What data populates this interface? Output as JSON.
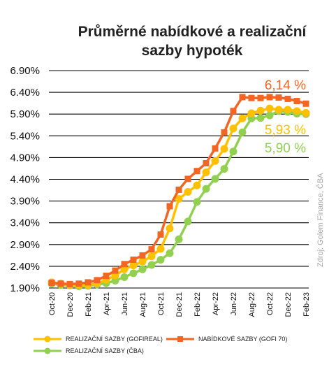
{
  "chart_data": {
    "type": "line",
    "title_lines": [
      "Průměrné nabídkové a realizační",
      "sazby hypoték"
    ],
    "y_ticks": [
      "6.90%",
      "6.40%",
      "5.90%",
      "5.40%",
      "4.90%",
      "4.40%",
      "3.90%",
      "3.40%",
      "2.90%",
      "2.40%",
      "1.90%"
    ],
    "ylim": [
      1.9,
      6.9
    ],
    "x_tick_labels": [
      "Oct-20",
      "Dec-20",
      "Feb-21",
      "Apr-21",
      "Jun-21",
      "Aug-21",
      "Oct-21",
      "Dec-21",
      "Feb-22",
      "Apr-22",
      "Jun-22",
      "Aug-22",
      "Oct-22",
      "Dec-22",
      "Feb-23"
    ],
    "source": "Zdroj: Golem Finance, ČBA",
    "series": [
      {
        "name": "NABÍDKOVÉ SAZBY (GOFI 70)",
        "color": "#f26522",
        "end_label": "6,14 %",
        "values": [
          2.02,
          2.0,
          1.99,
          2.0,
          2.03,
          2.08,
          2.18,
          2.3,
          2.45,
          2.55,
          2.65,
          2.79,
          3.13,
          3.78,
          4.16,
          4.41,
          4.59,
          4.77,
          5.11,
          5.48,
          5.97,
          6.29,
          6.27,
          6.27,
          6.29,
          6.28,
          6.25,
          6.2,
          6.14
        ]
      },
      {
        "name": "REALIZAČNÍ SAZBY (GOFIREAL)",
        "color": "#ffc000",
        "end_label": "5,93 %",
        "values": [
          2.03,
          2.0,
          1.97,
          1.96,
          1.97,
          2.01,
          2.09,
          2.19,
          2.33,
          2.42,
          2.51,
          2.63,
          2.8,
          3.27,
          3.95,
          4.11,
          4.26,
          4.56,
          4.82,
          5.1,
          5.57,
          5.8,
          5.92,
          5.98,
          6.03,
          6.0,
          6.0,
          5.97,
          5.93
        ]
      },
      {
        "name": "REALIZAČNÍ SAZBY (ČBA)",
        "color": "#92d050",
        "end_label": "5,90 %",
        "values": [
          2.0,
          1.97,
          1.96,
          1.94,
          1.95,
          1.98,
          2.01,
          2.07,
          2.15,
          2.24,
          2.33,
          2.43,
          2.55,
          2.7,
          3.02,
          3.43,
          3.88,
          4.18,
          4.41,
          4.64,
          5.04,
          5.48,
          5.8,
          5.81,
          5.87,
          5.97,
          5.95,
          5.91,
          5.9
        ]
      }
    ],
    "legend": [
      {
        "label": "REALIZAČNÍ SAZBY (GOFIREAL)",
        "color": "#ffc000"
      },
      {
        "label": "NABÍDKOVÉ SAZBY (GOFI 70)",
        "color": "#f26522"
      },
      {
        "label": "REALIZAČNÍ SAZBY (ČBA)",
        "color": "#92d050"
      }
    ],
    "grid": true
  }
}
